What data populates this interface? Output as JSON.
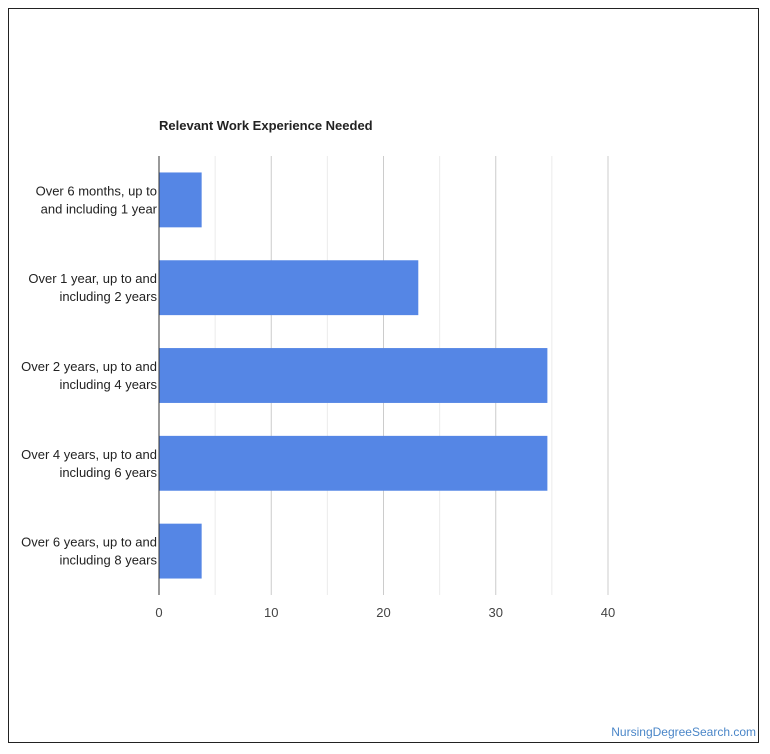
{
  "chart_data": {
    "type": "bar",
    "orientation": "horizontal",
    "title": "Relevant Work Experience Needed",
    "categories": [
      [
        "Over 6 months, up to",
        "and including 1 year"
      ],
      [
        "Over 1 year, up to and",
        "including 2 years"
      ],
      [
        "Over 2 years, up to and",
        "including 4 years"
      ],
      [
        "Over 4 years, up to and",
        "including 6 years"
      ],
      [
        "Over 6 years, up to and",
        "including 8 years"
      ]
    ],
    "values": [
      3.8,
      23.1,
      34.6,
      34.6,
      3.8
    ],
    "xlim": [
      0,
      40
    ],
    "xticks": [
      0,
      10,
      20,
      30,
      40
    ],
    "xlabel": "",
    "ylabel": "",
    "grid": true,
    "bar_color": "#5586e5",
    "legend": "none"
  },
  "footer": {
    "source": "NursingDegreeSearch.com"
  },
  "colors": {
    "gridline": "#cccccc",
    "minor_gridline": "#ebebeb",
    "link": "#4a86c8"
  }
}
